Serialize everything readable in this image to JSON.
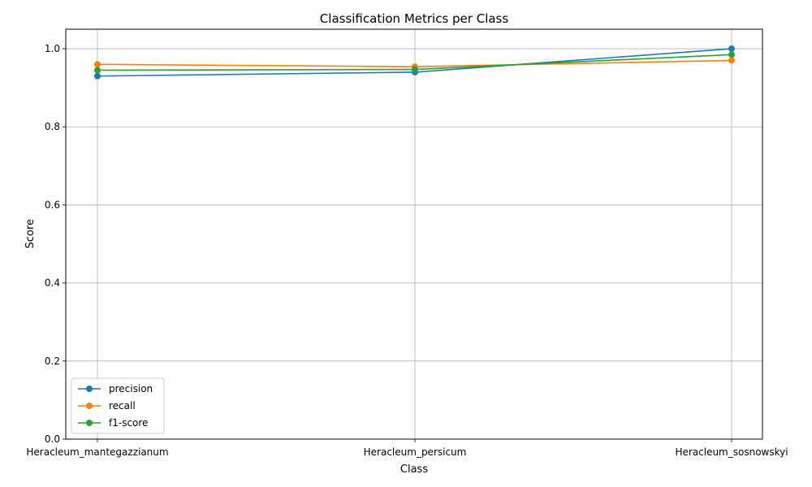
{
  "chart_data": {
    "type": "line",
    "title": "Classification Metrics per Class",
    "xlabel": "Class",
    "ylabel": "Score",
    "categories": [
      "Heracleum_mantegazzianum",
      "Heracleum_persicum",
      "Heracleum_sosnowskyi"
    ],
    "ylim": [
      0,
      1.05
    ],
    "yticks": [
      0.0,
      0.2,
      0.4,
      0.6,
      0.8,
      1.0
    ],
    "ytick_labels": [
      "0.0",
      "0.2",
      "0.4",
      "0.6",
      "0.8",
      "1.0"
    ],
    "grid": true,
    "legend_position": "bottom-left",
    "series": [
      {
        "name": "precision",
        "color": "#1f77b4",
        "values": [
          0.93,
          0.94,
          1.0
        ]
      },
      {
        "name": "recall",
        "color": "#ff7f0e",
        "values": [
          0.96,
          0.954,
          0.97
        ]
      },
      {
        "name": "f1-score",
        "color": "#2ca02c",
        "values": [
          0.945,
          0.947,
          0.985
        ]
      }
    ]
  }
}
